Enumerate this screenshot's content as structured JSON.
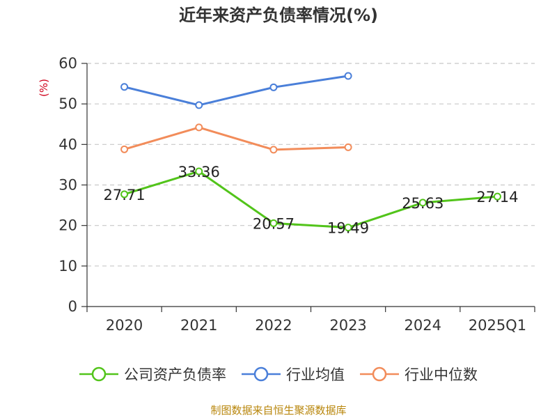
{
  "chart_data": {
    "type": "line",
    "title": "近年来资产负债率情况(%)",
    "ylabel": "(%)",
    "xlabel": "",
    "categories": [
      "2020",
      "2021",
      "2022",
      "2023",
      "2024",
      "2025Q1"
    ],
    "ylim": [
      0,
      60
    ],
    "yticks": [
      0,
      10,
      20,
      30,
      40,
      50,
      60
    ],
    "grid": true,
    "legend_position": "bottom",
    "series": [
      {
        "name": "公司资产负债率",
        "color": "#52c41a",
        "values": [
          27.71,
          33.36,
          20.57,
          19.49,
          25.63,
          27.14
        ],
        "labels": [
          "27.71",
          "33.36",
          "20.57",
          "19.49",
          "25.63",
          "27.14"
        ]
      },
      {
        "name": "行业均值",
        "color": "#4a7fd9",
        "values": [
          54.2,
          49.7,
          54.1,
          56.9,
          null,
          null
        ]
      },
      {
        "name": "行业中位数",
        "color": "#f28c5a",
        "values": [
          38.8,
          44.2,
          38.7,
          39.3,
          null,
          null
        ]
      }
    ]
  },
  "source": "制图数据来自恒生聚源数据库"
}
